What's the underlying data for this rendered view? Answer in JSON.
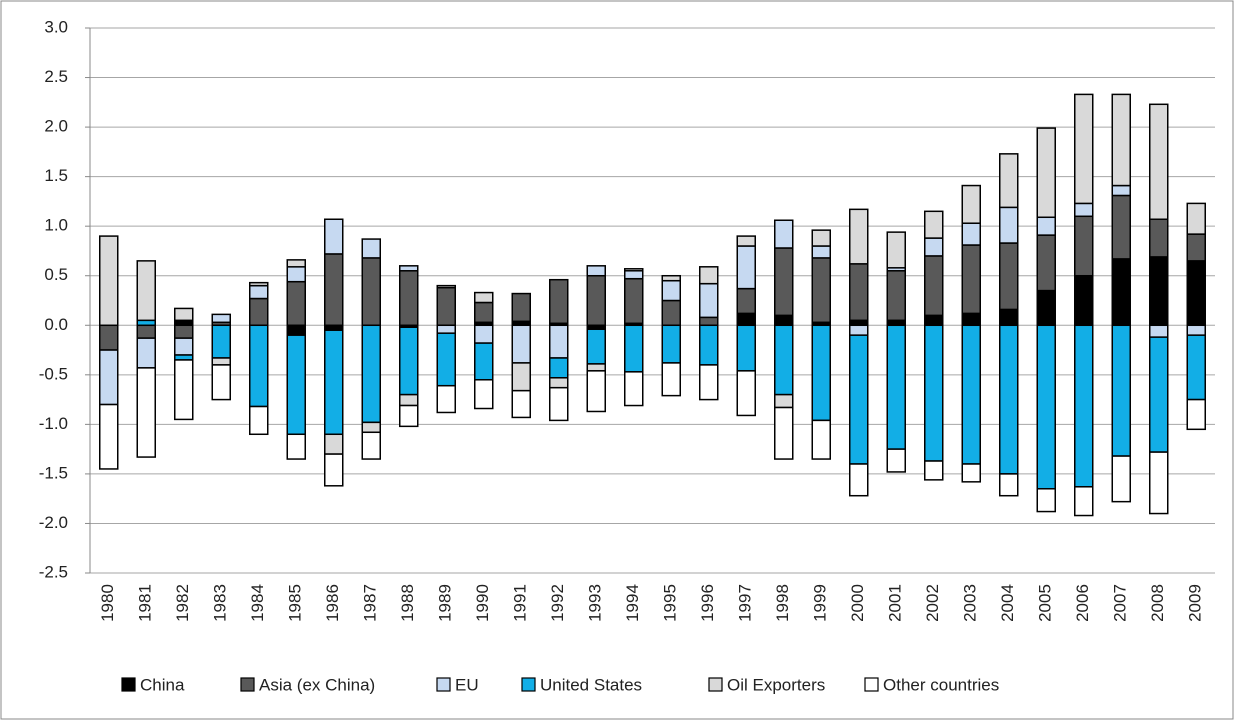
{
  "chart_data": {
    "type": "stacked-bar",
    "categories": [
      "1980",
      "1981",
      "1982",
      "1983",
      "1984",
      "1985",
      "1986",
      "1987",
      "1988",
      "1989",
      "1990",
      "1991",
      "1992",
      "1993",
      "1994",
      "1995",
      "1996",
      "1997",
      "1998",
      "1999",
      "2000",
      "2001",
      "2002",
      "2003",
      "2004",
      "2005",
      "2006",
      "2007",
      "2008",
      "2009"
    ],
    "series": [
      {
        "name": "China",
        "color": "#000000",
        "values": [
          0,
          0,
          0.05,
          0,
          0,
          -0.1,
          -0.05,
          0,
          -0.02,
          0,
          0.03,
          0.04,
          0.02,
          -0.04,
          0.02,
          0,
          0,
          0.12,
          0.1,
          0.03,
          0.05,
          0.05,
          0.1,
          0.12,
          0.16,
          0.35,
          0.5,
          0.67,
          0.69,
          0.65
        ]
      },
      {
        "name": "Asia (ex China)",
        "color": "#595959",
        "values": [
          -0.25,
          -0.13,
          -0.13,
          0.03,
          0.27,
          0.44,
          0.72,
          0.68,
          0.55,
          0.38,
          0.2,
          0.28,
          0.44,
          0.5,
          0.45,
          0.25,
          0.08,
          0.25,
          0.68,
          0.65,
          0.57,
          0.5,
          0.6,
          0.69,
          0.67,
          0.56,
          0.6,
          0.64,
          0.38,
          0.27
        ]
      },
      {
        "name": "EU",
        "color": "#c6d9f1",
        "values": [
          -0.55,
          -0.3,
          -0.17,
          0.08,
          0.13,
          0.15,
          0.35,
          0.19,
          0.05,
          -0.08,
          -0.18,
          -0.38,
          -0.33,
          0.1,
          0.08,
          0.2,
          0.34,
          0.43,
          0.28,
          0.12,
          -0.1,
          0.03,
          0.18,
          0.22,
          0.36,
          0.18,
          0.13,
          0.1,
          -0.12,
          -0.1
        ]
      },
      {
        "name": "United States",
        "color": "#12aee6",
        "values": [
          0,
          0.05,
          -0.05,
          -0.33,
          -0.82,
          -1.0,
          -1.05,
          -0.98,
          -0.68,
          -0.53,
          -0.37,
          0,
          -0.2,
          -0.35,
          -0.47,
          -0.38,
          -0.4,
          -0.46,
          -0.7,
          -0.96,
          -1.3,
          -1.25,
          -1.37,
          -1.4,
          -1.5,
          -1.65,
          -1.63,
          -1.32,
          -1.16,
          -0.65
        ]
      },
      {
        "name": "Oil Exporters",
        "color": "#d9d9d9",
        "values": [
          0.9,
          0.6,
          0.12,
          -0.07,
          0.03,
          0.07,
          -0.2,
          -0.1,
          -0.11,
          0.02,
          0.1,
          -0.28,
          -0.1,
          -0.07,
          0.02,
          0.05,
          0.17,
          0.1,
          -0.13,
          0.16,
          0.55,
          0.36,
          0.27,
          0.38,
          0.54,
          0.9,
          1.1,
          0.92,
          1.16,
          0.31
        ]
      },
      {
        "name": "Other countries",
        "color": "#ffffff",
        "values": [
          -0.65,
          -0.9,
          -0.6,
          -0.35,
          -0.28,
          -0.25,
          -0.32,
          -0.27,
          -0.21,
          -0.27,
          -0.29,
          -0.27,
          -0.33,
          -0.41,
          -0.34,
          -0.33,
          -0.35,
          -0.45,
          -0.52,
          -0.39,
          -0.32,
          -0.23,
          -0.19,
          -0.18,
          -0.22,
          -0.23,
          -0.29,
          -0.46,
          -0.62,
          -0.3
        ]
      }
    ],
    "ylim": [
      -2.5,
      3.0
    ],
    "yticks": [
      {
        "value": -2.5,
        "label": "-2.5"
      },
      {
        "value": -2.0,
        "label": "-2.0"
      },
      {
        "value": -1.5,
        "label": "-1.5"
      },
      {
        "value": -1.0,
        "label": "-1.0"
      },
      {
        "value": -0.5,
        "label": "-0.5"
      },
      {
        "value": 0,
        "label": "0.0"
      },
      {
        "value": 0.5,
        "label": "0.5"
      },
      {
        "value": 1.0,
        "label": "1.0"
      },
      {
        "value": 1.5,
        "label": "1.5"
      },
      {
        "value": 2.0,
        "label": "2.0"
      },
      {
        "value": 2.5,
        "label": "2.5"
      },
      {
        "value": 3.0,
        "label": "3.0"
      }
    ],
    "grid": true,
    "legend": "bottom"
  }
}
